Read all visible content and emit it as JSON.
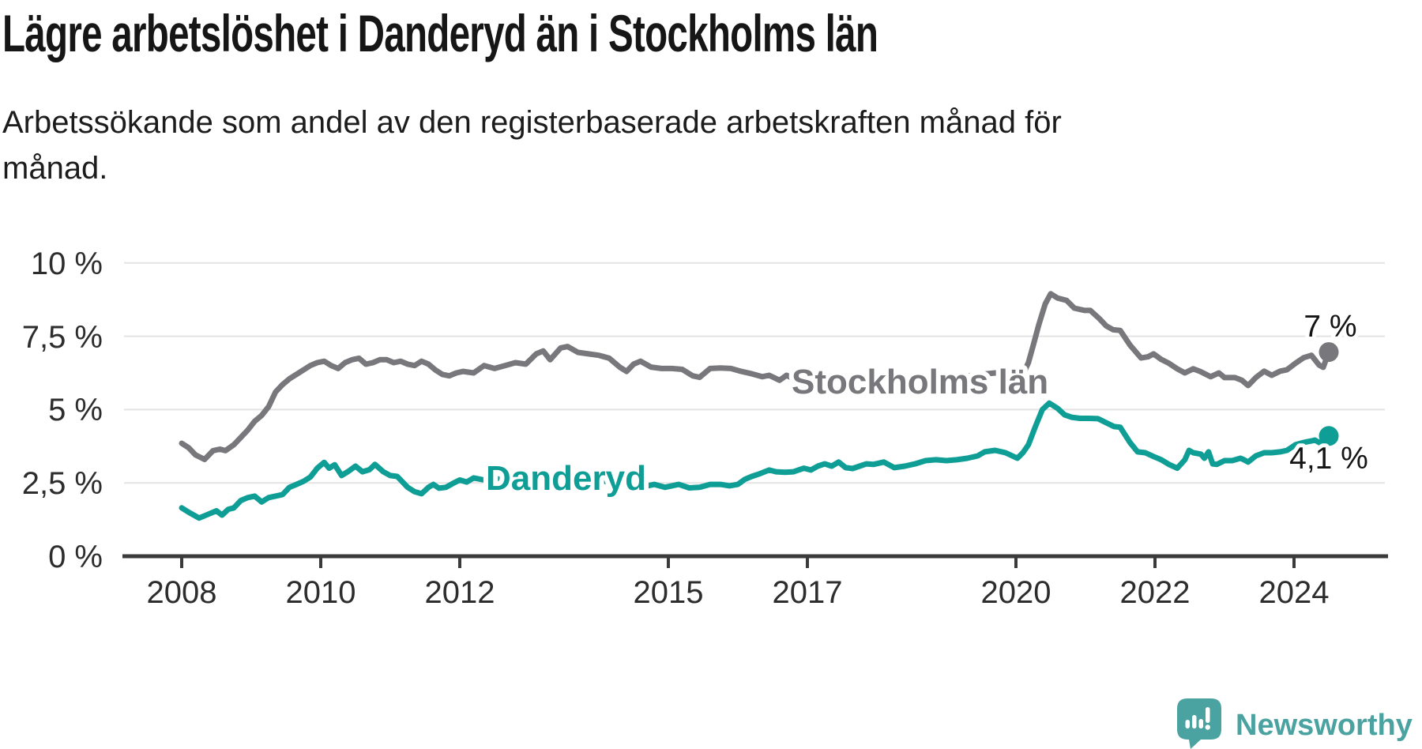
{
  "title": "Lägre arbetslöshet i Danderyd än i Stockholms län",
  "subtitle": "Arbetssökande som andel av den registerbaserade arbetskraften månad för månad.",
  "branding": {
    "name": "Newsworthy",
    "color": "#4aa3a0"
  },
  "chart_data": {
    "type": "line",
    "title": "Lägre arbetslöshet i Danderyd än i Stockholms län",
    "subtitle": "Arbetssökande som andel av den registerbaserade arbetskraften månad för månad.",
    "unit": "%",
    "grid": true,
    "legend_position": "inline-labels",
    "ylim": [
      0,
      10
    ],
    "xlim": [
      2008,
      2024.9
    ],
    "y_ticks": [
      10,
      7.5,
      5,
      2.5,
      0
    ],
    "y_tick_labels": [
      "10 %",
      "7,5 %",
      "5 %",
      "2,5 %",
      "0 %"
    ],
    "x_ticks": [
      2008,
      2010,
      2012,
      2015,
      2017,
      2020,
      2022,
      2024
    ],
    "x_tick_labels": [
      "2008",
      "2010",
      "2012",
      "2015",
      "2017",
      "2020",
      "2022",
      "2024"
    ],
    "series": [
      {
        "name": "Stockholms län",
        "color": "#78777b",
        "end_label": "7 %",
        "end_value": 7.0,
        "points": [
          [
            2008.0,
            3.85
          ],
          [
            2008.1,
            3.7
          ],
          [
            2008.2,
            3.45
          ],
          [
            2008.33,
            3.3
          ],
          [
            2008.45,
            3.6
          ],
          [
            2008.55,
            3.65
          ],
          [
            2008.63,
            3.6
          ],
          [
            2008.75,
            3.8
          ],
          [
            2008.85,
            4.05
          ],
          [
            2008.95,
            4.3
          ],
          [
            2009.05,
            4.6
          ],
          [
            2009.15,
            4.8
          ],
          [
            2009.25,
            5.1
          ],
          [
            2009.35,
            5.6
          ],
          [
            2009.45,
            5.85
          ],
          [
            2009.55,
            6.05
          ],
          [
            2009.65,
            6.2
          ],
          [
            2009.75,
            6.35
          ],
          [
            2009.85,
            6.5
          ],
          [
            2009.95,
            6.6
          ],
          [
            2010.05,
            6.65
          ],
          [
            2010.15,
            6.5
          ],
          [
            2010.25,
            6.4
          ],
          [
            2010.35,
            6.6
          ],
          [
            2010.45,
            6.7
          ],
          [
            2010.55,
            6.75
          ],
          [
            2010.65,
            6.55
          ],
          [
            2010.75,
            6.6
          ],
          [
            2010.85,
            6.7
          ],
          [
            2010.95,
            6.7
          ],
          [
            2011.05,
            6.6
          ],
          [
            2011.15,
            6.65
          ],
          [
            2011.25,
            6.55
          ],
          [
            2011.35,
            6.5
          ],
          [
            2011.45,
            6.65
          ],
          [
            2011.55,
            6.55
          ],
          [
            2011.65,
            6.35
          ],
          [
            2011.75,
            6.2
          ],
          [
            2011.85,
            6.15
          ],
          [
            2011.95,
            6.25
          ],
          [
            2012.05,
            6.3
          ],
          [
            2012.2,
            6.25
          ],
          [
            2012.35,
            6.5
          ],
          [
            2012.5,
            6.4
          ],
          [
            2012.65,
            6.5
          ],
          [
            2012.8,
            6.6
          ],
          [
            2012.95,
            6.55
          ],
          [
            2013.1,
            6.9
          ],
          [
            2013.2,
            7.0
          ],
          [
            2013.3,
            6.7
          ],
          [
            2013.45,
            7.1
          ],
          [
            2013.55,
            7.15
          ],
          [
            2013.7,
            6.95
          ],
          [
            2013.85,
            6.9
          ],
          [
            2014.0,
            6.85
          ],
          [
            2014.15,
            6.75
          ],
          [
            2014.3,
            6.45
          ],
          [
            2014.4,
            6.3
          ],
          [
            2014.5,
            6.55
          ],
          [
            2014.6,
            6.65
          ],
          [
            2014.75,
            6.45
          ],
          [
            2014.9,
            6.4
          ],
          [
            2015.05,
            6.4
          ],
          [
            2015.2,
            6.37
          ],
          [
            2015.35,
            6.15
          ],
          [
            2015.45,
            6.1
          ],
          [
            2015.6,
            6.4
          ],
          [
            2015.75,
            6.42
          ],
          [
            2015.9,
            6.4
          ],
          [
            2016.05,
            6.3
          ],
          [
            2016.2,
            6.22
          ],
          [
            2016.35,
            6.12
          ],
          [
            2016.45,
            6.17
          ],
          [
            2016.6,
            6.0
          ],
          [
            2016.7,
            6.17
          ],
          [
            2016.8,
            6.05
          ],
          [
            2016.9,
            6.17
          ],
          [
            2016.97,
            5.96
          ],
          [
            2017.1,
            6.15
          ],
          [
            2017.3,
            6.1
          ],
          [
            2017.5,
            6.05
          ],
          [
            2017.7,
            6.0
          ],
          [
            2017.9,
            5.95
          ],
          [
            2018.1,
            5.92
          ],
          [
            2018.3,
            5.95
          ],
          [
            2018.5,
            6.0
          ],
          [
            2018.7,
            6.02
          ],
          [
            2018.9,
            6.05
          ],
          [
            2019.1,
            6.1
          ],
          [
            2019.3,
            6.15
          ],
          [
            2019.5,
            6.2
          ],
          [
            2019.7,
            6.25
          ],
          [
            2019.85,
            6.2
          ],
          [
            2019.95,
            6.15
          ],
          [
            2020.1,
            6.2
          ],
          [
            2020.18,
            6.6
          ],
          [
            2020.25,
            7.2
          ],
          [
            2020.33,
            7.9
          ],
          [
            2020.42,
            8.6
          ],
          [
            2020.5,
            8.95
          ],
          [
            2020.6,
            8.8
          ],
          [
            2020.73,
            8.72
          ],
          [
            2020.84,
            8.46
          ],
          [
            2020.99,
            8.38
          ],
          [
            2021.07,
            8.38
          ],
          [
            2021.2,
            8.1
          ],
          [
            2021.3,
            7.85
          ],
          [
            2021.4,
            7.72
          ],
          [
            2021.5,
            7.7
          ],
          [
            2021.64,
            7.2
          ],
          [
            2021.8,
            6.76
          ],
          [
            2021.9,
            6.8
          ],
          [
            2021.98,
            6.9
          ],
          [
            2022.09,
            6.71
          ],
          [
            2022.2,
            6.58
          ],
          [
            2022.32,
            6.39
          ],
          [
            2022.43,
            6.25
          ],
          [
            2022.55,
            6.39
          ],
          [
            2022.65,
            6.3
          ],
          [
            2022.8,
            6.12
          ],
          [
            2022.92,
            6.25
          ],
          [
            2023.0,
            6.09
          ],
          [
            2023.15,
            6.09
          ],
          [
            2023.25,
            6.0
          ],
          [
            2023.34,
            5.82
          ],
          [
            2023.45,
            6.09
          ],
          [
            2023.57,
            6.31
          ],
          [
            2023.68,
            6.17
          ],
          [
            2023.8,
            6.31
          ],
          [
            2023.9,
            6.36
          ],
          [
            2024.02,
            6.58
          ],
          [
            2024.14,
            6.77
          ],
          [
            2024.25,
            6.85
          ],
          [
            2024.36,
            6.52
          ],
          [
            2024.42,
            6.44
          ],
          [
            2024.5,
            6.96
          ]
        ]
      },
      {
        "name": "Danderyd",
        "color": "#0f9e96",
        "end_label": "4,1 %",
        "end_value": 4.1,
        "points": [
          [
            2008.0,
            1.65
          ],
          [
            2008.1,
            1.5
          ],
          [
            2008.25,
            1.3
          ],
          [
            2008.4,
            1.45
          ],
          [
            2008.5,
            1.55
          ],
          [
            2008.58,
            1.4
          ],
          [
            2008.67,
            1.6
          ],
          [
            2008.75,
            1.65
          ],
          [
            2008.85,
            1.9
          ],
          [
            2008.95,
            2.0
          ],
          [
            2009.05,
            2.05
          ],
          [
            2009.15,
            1.85
          ],
          [
            2009.25,
            2.0
          ],
          [
            2009.35,
            2.05
          ],
          [
            2009.45,
            2.1
          ],
          [
            2009.55,
            2.35
          ],
          [
            2009.65,
            2.45
          ],
          [
            2009.75,
            2.55
          ],
          [
            2009.85,
            2.7
          ],
          [
            2009.95,
            3.0
          ],
          [
            2010.05,
            3.2
          ],
          [
            2010.12,
            3.0
          ],
          [
            2010.2,
            3.12
          ],
          [
            2010.3,
            2.75
          ],
          [
            2010.4,
            2.9
          ],
          [
            2010.5,
            3.07
          ],
          [
            2010.6,
            2.88
          ],
          [
            2010.7,
            2.95
          ],
          [
            2010.78,
            3.13
          ],
          [
            2010.9,
            2.88
          ],
          [
            2011.0,
            2.75
          ],
          [
            2011.1,
            2.72
          ],
          [
            2011.25,
            2.35
          ],
          [
            2011.35,
            2.2
          ],
          [
            2011.45,
            2.13
          ],
          [
            2011.55,
            2.35
          ],
          [
            2011.62,
            2.45
          ],
          [
            2011.7,
            2.32
          ],
          [
            2011.8,
            2.35
          ],
          [
            2011.9,
            2.48
          ],
          [
            2012.0,
            2.6
          ],
          [
            2012.1,
            2.53
          ],
          [
            2012.2,
            2.67
          ],
          [
            2012.35,
            2.6
          ],
          [
            2012.5,
            2.65
          ],
          [
            2012.65,
            2.6
          ],
          [
            2012.8,
            2.65
          ],
          [
            2012.95,
            2.6
          ],
          [
            2013.1,
            2.68
          ],
          [
            2013.3,
            2.62
          ],
          [
            2013.5,
            2.68
          ],
          [
            2013.7,
            2.58
          ],
          [
            2013.9,
            2.62
          ],
          [
            2014.1,
            2.55
          ],
          [
            2014.3,
            2.58
          ],
          [
            2014.5,
            2.48
          ],
          [
            2014.63,
            2.45
          ],
          [
            2014.7,
            2.4
          ],
          [
            2014.8,
            2.45
          ],
          [
            2014.95,
            2.35
          ],
          [
            2015.05,
            2.4
          ],
          [
            2015.15,
            2.45
          ],
          [
            2015.3,
            2.33
          ],
          [
            2015.45,
            2.35
          ],
          [
            2015.6,
            2.45
          ],
          [
            2015.75,
            2.45
          ],
          [
            2015.88,
            2.4
          ],
          [
            2016.0,
            2.45
          ],
          [
            2016.1,
            2.62
          ],
          [
            2016.2,
            2.72
          ],
          [
            2016.3,
            2.8
          ],
          [
            2016.45,
            2.94
          ],
          [
            2016.55,
            2.88
          ],
          [
            2016.68,
            2.86
          ],
          [
            2016.8,
            2.88
          ],
          [
            2016.95,
            3.0
          ],
          [
            2017.05,
            2.94
          ],
          [
            2017.15,
            3.07
          ],
          [
            2017.25,
            3.15
          ],
          [
            2017.35,
            3.07
          ],
          [
            2017.45,
            3.21
          ],
          [
            2017.55,
            3.02
          ],
          [
            2017.65,
            2.99
          ],
          [
            2017.75,
            3.07
          ],
          [
            2017.85,
            3.15
          ],
          [
            2017.95,
            3.13
          ],
          [
            2018.1,
            3.21
          ],
          [
            2018.25,
            3.02
          ],
          [
            2018.4,
            3.07
          ],
          [
            2018.55,
            3.15
          ],
          [
            2018.7,
            3.26
          ],
          [
            2018.85,
            3.29
          ],
          [
            2019.0,
            3.26
          ],
          [
            2019.15,
            3.29
          ],
          [
            2019.3,
            3.34
          ],
          [
            2019.45,
            3.42
          ],
          [
            2019.55,
            3.56
          ],
          [
            2019.7,
            3.61
          ],
          [
            2019.85,
            3.53
          ],
          [
            2020.02,
            3.34
          ],
          [
            2020.1,
            3.53
          ],
          [
            2020.18,
            3.8
          ],
          [
            2020.28,
            4.42
          ],
          [
            2020.38,
            5.0
          ],
          [
            2020.48,
            5.22
          ],
          [
            2020.6,
            5.04
          ],
          [
            2020.7,
            4.82
          ],
          [
            2020.8,
            4.74
          ],
          [
            2020.92,
            4.7
          ],
          [
            2021.05,
            4.7
          ],
          [
            2021.18,
            4.69
          ],
          [
            2021.3,
            4.55
          ],
          [
            2021.41,
            4.42
          ],
          [
            2021.5,
            4.4
          ],
          [
            2021.64,
            3.88
          ],
          [
            2021.75,
            3.56
          ],
          [
            2021.86,
            3.53
          ],
          [
            2021.98,
            3.4
          ],
          [
            2022.09,
            3.29
          ],
          [
            2022.2,
            3.13
          ],
          [
            2022.32,
            3.0
          ],
          [
            2022.43,
            3.29
          ],
          [
            2022.49,
            3.61
          ],
          [
            2022.55,
            3.53
          ],
          [
            2022.66,
            3.48
          ],
          [
            2022.71,
            3.34
          ],
          [
            2022.77,
            3.56
          ],
          [
            2022.83,
            3.15
          ],
          [
            2022.89,
            3.13
          ],
          [
            2023.0,
            3.26
          ],
          [
            2023.11,
            3.26
          ],
          [
            2023.23,
            3.34
          ],
          [
            2023.28,
            3.29
          ],
          [
            2023.34,
            3.21
          ],
          [
            2023.45,
            3.42
          ],
          [
            2023.57,
            3.53
          ],
          [
            2023.68,
            3.53
          ],
          [
            2023.8,
            3.56
          ],
          [
            2023.9,
            3.61
          ],
          [
            2024.02,
            3.8
          ],
          [
            2024.14,
            3.88
          ],
          [
            2024.25,
            3.93
          ],
          [
            2024.3,
            3.96
          ],
          [
            2024.42,
            3.8
          ],
          [
            2024.5,
            4.1
          ]
        ]
      }
    ]
  }
}
